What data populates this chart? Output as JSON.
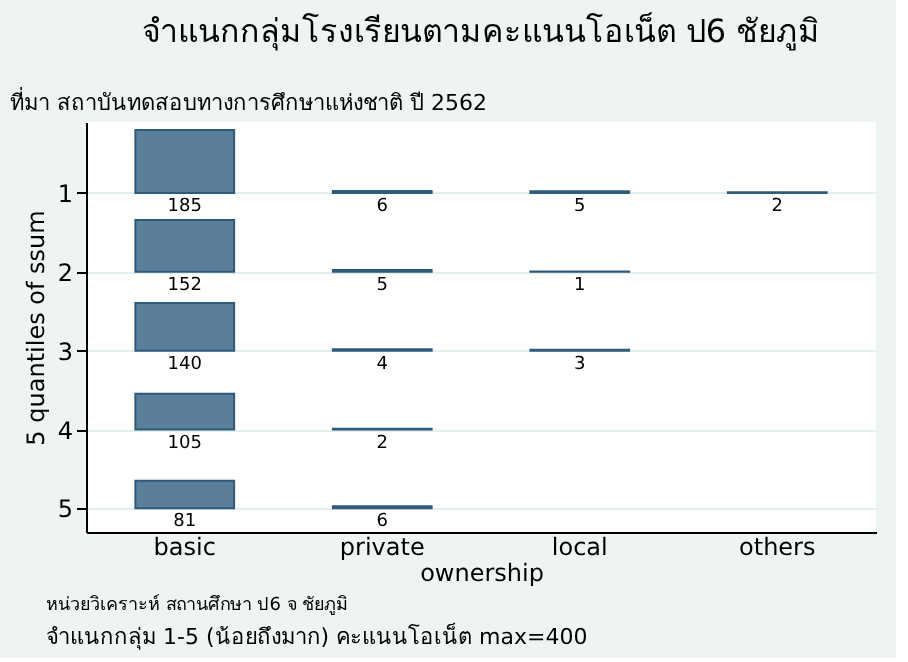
{
  "chart_data": {
    "type": "heatmap",
    "title": "จำแนกกลุ่มโรงเรียนตามคะแนนโอเน็ต ป6  ชัยภูมิ",
    "subtitle": "ที่มา สถาบันทดสอบทางการศึกษาแห่งชาติ ปี 2562",
    "xlabel": "ownership",
    "ylabel": "5 quantiles of ssum",
    "categories": [
      "basic",
      "private",
      "local",
      "others"
    ],
    "y_categories": [
      "1",
      "2",
      "3",
      "4",
      "5"
    ],
    "cells": [
      [
        185,
        6,
        5,
        2
      ],
      [
        152,
        5,
        1,
        null
      ],
      [
        140,
        4,
        3,
        null
      ],
      [
        105,
        2,
        null,
        null
      ],
      [
        81,
        6,
        null,
        null
      ]
    ],
    "color": "#5b7f9b",
    "data_labels": true,
    "grid": "y",
    "annotations": [
      "หน่วยวิเคราะห์ สถานศึกษา ป6 จ ชัยภูมิ",
      "จำแนกกลุ่ม 1-5 (น้อยถึงมาก) คะแนนโอเน็ต max=400"
    ]
  }
}
